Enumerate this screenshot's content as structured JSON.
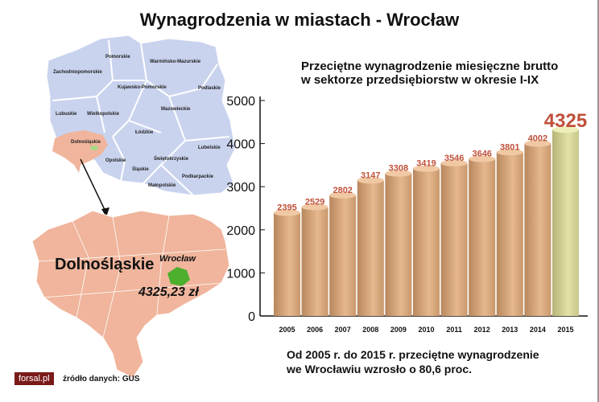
{
  "title": "Wynagrodzenia w miastach - Wrocław",
  "map": {
    "regions": [
      "Pomorskie",
      "Warmińsko-Mazurskie",
      "Zachodniopomorskie",
      "Kujawsko-Pomorskie",
      "Podlaskie",
      "Lubuskie",
      "Wielkopolskie",
      "Mazowieckie",
      "Łódzkie",
      "Dolnośląskie",
      "Lubelskie",
      "Opolskie",
      "Świętokrzyskie",
      "Śląskie",
      "Podkarpackie",
      "Małopolskie"
    ],
    "region_color": "#c9d3ee",
    "highlight_color": "#f0b59c",
    "city_color": "#4caf2e",
    "detail_region": "Dolnośląskie",
    "detail_city": "Wrocław",
    "detail_value": "4325,23 zł"
  },
  "chart_data": {
    "type": "bar",
    "title": "Przeciętne wynagrodzenie miesięczne brutto w sektorze przedsiębiorstw w okresie I-IX",
    "title_lines": [
      "Przeciętne wynagrodzenie miesięczne brutto",
      "w sektorze przedsiębiorstw w okresie I-IX"
    ],
    "categories": [
      "2005",
      "2006",
      "2007",
      "2008",
      "2009",
      "2010",
      "2011",
      "2012",
      "2013",
      "2014",
      "2015"
    ],
    "values": [
      2395,
      2529,
      2802,
      3147,
      3308,
      3419,
      3546,
      3646,
      3801,
      4002,
      4325
    ],
    "ylim": [
      0,
      5000
    ],
    "yticks": [
      0,
      1000,
      2000,
      3000,
      4000,
      5000
    ],
    "bar_color": "#d9aa80",
    "highlight_bar_color": "#d6d69a",
    "label_color": "#c0503a",
    "grid": false
  },
  "note": [
    "Od 2005 r. do 2015 r. przeciętne wynagrodzenie",
    "we Wrocławiu wzrosło o 80,6 proc."
  ],
  "footer": {
    "logo": "forsal.pl",
    "source": "źródło danych: GUS"
  }
}
